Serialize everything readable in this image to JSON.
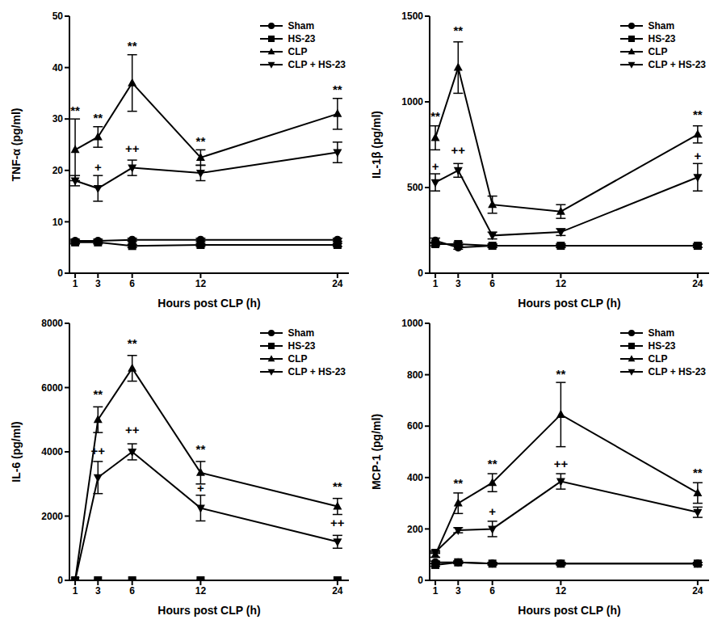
{
  "chart_data": [
    {
      "type": "line",
      "y_label": "TNF-α  (pg/ml)",
      "x_label": "Hours post CLP (h)",
      "x": [
        1,
        3,
        6,
        12,
        24
      ],
      "xlim": [
        0.5,
        25
      ],
      "xticks": [
        1,
        3,
        6,
        12,
        24
      ],
      "ylim": [
        0,
        50
      ],
      "yticks": [
        0,
        10,
        20,
        30,
        40,
        50
      ],
      "legend": "top-right",
      "series": [
        {
          "name": "Sham",
          "color": "#000000",
          "marker": "circle",
          "values": [
            6.3,
            6.3,
            6.5,
            6.5,
            6.5
          ],
          "errors": [
            0.3,
            0.3,
            0.3,
            0.3,
            0.3
          ]
        },
        {
          "name": "HS-23",
          "color": "#000000",
          "marker": "square",
          "values": [
            6.0,
            6.0,
            5.3,
            5.5,
            5.5
          ],
          "errors": [
            0.3,
            0.3,
            0.3,
            0.3,
            0.3
          ]
        },
        {
          "name": "CLP",
          "color": "#000000",
          "marker": "triangle-up",
          "values": [
            24,
            26.5,
            37,
            22.5,
            31
          ],
          "errors": [
            6,
            2,
            5.5,
            1.5,
            3
          ]
        },
        {
          "name": "CLP + HS-23",
          "color": "#000000",
          "marker": "triangle-down",
          "values": [
            18,
            16.5,
            20.5,
            19.5,
            23.5
          ],
          "errors": [
            1,
            2.5,
            1.5,
            1.5,
            2
          ]
        }
      ],
      "annotations": [
        {
          "x": 1,
          "y": 31.5,
          "text": "**"
        },
        {
          "x": 3,
          "y": 30,
          "text": "**"
        },
        {
          "x": 6,
          "y": 44,
          "text": "**"
        },
        {
          "x": 6,
          "y": 24,
          "text": "++"
        },
        {
          "x": 3,
          "y": 20.5,
          "text": "+"
        },
        {
          "x": 12,
          "y": 25.5,
          "text": "**"
        },
        {
          "x": 24,
          "y": 35.5,
          "text": "**"
        }
      ]
    },
    {
      "type": "line",
      "y_label": "IL-1β  (pg/ml)",
      "x_label": "Hours post CLP (h)",
      "x": [
        1,
        3,
        6,
        12,
        24
      ],
      "xlim": [
        0.5,
        25
      ],
      "xticks": [
        1,
        3,
        6,
        12,
        24
      ],
      "ylim": [
        0,
        1500
      ],
      "yticks": [
        0,
        500,
        1000,
        1500
      ],
      "legend": "top-right",
      "series": [
        {
          "name": "Sham",
          "color": "#000000",
          "marker": "circle",
          "values": [
            190,
            150,
            160,
            160,
            160
          ],
          "errors": [
            15,
            10,
            10,
            10,
            10
          ]
        },
        {
          "name": "HS-23",
          "color": "#000000",
          "marker": "square",
          "values": [
            170,
            170,
            160,
            160,
            160
          ],
          "errors": [
            10,
            10,
            10,
            10,
            10
          ]
        },
        {
          "name": "CLP",
          "color": "#000000",
          "marker": "triangle-up",
          "values": [
            790,
            1200,
            400,
            360,
            810
          ],
          "errors": [
            70,
            150,
            50,
            40,
            50
          ]
        },
        {
          "name": "CLP + HS-23",
          "color": "#000000",
          "marker": "triangle-down",
          "values": [
            530,
            600,
            220,
            240,
            560
          ],
          "errors": [
            50,
            40,
            20,
            20,
            80
          ]
        }
      ],
      "annotations": [
        {
          "x": 1,
          "y": 910,
          "text": "**"
        },
        {
          "x": 1,
          "y": 620,
          "text": "+"
        },
        {
          "x": 3,
          "y": 1410,
          "text": "**"
        },
        {
          "x": 3,
          "y": 710,
          "text": "++"
        },
        {
          "x": 24,
          "y": 920,
          "text": "**"
        },
        {
          "x": 24,
          "y": 680,
          "text": "+"
        }
      ]
    },
    {
      "type": "line",
      "y_label": "IL-6  (pg/ml)",
      "x_label": "Hours post CLP (h)",
      "x": [
        1,
        3,
        6,
        12,
        24
      ],
      "xlim": [
        0.5,
        25
      ],
      "xticks": [
        1,
        3,
        6,
        12,
        24
      ],
      "ylim": [
        0,
        8000
      ],
      "yticks": [
        0,
        2000,
        4000,
        6000,
        8000
      ],
      "legend": "top-right",
      "series": [
        {
          "name": "Sham",
          "color": "#000000",
          "marker": "circle",
          "values": [
            0,
            0,
            0,
            0,
            0
          ],
          "errors": [
            0,
            0,
            0,
            0,
            0
          ]
        },
        {
          "name": "HS-23",
          "color": "#000000",
          "marker": "square",
          "values": [
            0,
            0,
            0,
            0,
            0
          ],
          "errors": [
            0,
            0,
            0,
            0,
            0
          ]
        },
        {
          "name": "CLP",
          "color": "#000000",
          "marker": "triangle-up",
          "values": [
            0,
            5000,
            6600,
            3350,
            2300
          ],
          "errors": [
            0,
            400,
            400,
            350,
            250
          ]
        },
        {
          "name": "CLP + HS-23",
          "color": "#000000",
          "marker": "triangle-down",
          "values": [
            0,
            3200,
            4000,
            2250,
            1200
          ],
          "errors": [
            0,
            500,
            250,
            400,
            200
          ]
        }
      ],
      "annotations": [
        {
          "x": 3,
          "y": 5750,
          "text": "**"
        },
        {
          "x": 3,
          "y": 4000,
          "text": "++"
        },
        {
          "x": 6,
          "y": 7350,
          "text": "**"
        },
        {
          "x": 6,
          "y": 4650,
          "text": "++"
        },
        {
          "x": 12,
          "y": 4050,
          "text": "**"
        },
        {
          "x": 12,
          "y": 2850,
          "text": "+"
        },
        {
          "x": 24,
          "y": 2900,
          "text": "**"
        },
        {
          "x": 24,
          "y": 1750,
          "text": "++"
        }
      ]
    },
    {
      "type": "line",
      "y_label": "MCP-1  (pg/ml)",
      "x_label": "Hours post CLP (h)",
      "x": [
        1,
        3,
        6,
        12,
        24
      ],
      "xlim": [
        0.5,
        25
      ],
      "xticks": [
        1,
        3,
        6,
        12,
        24
      ],
      "ylim": [
        0,
        1000
      ],
      "yticks": [
        0,
        200,
        400,
        600,
        800,
        1000
      ],
      "legend": "top-right",
      "series": [
        {
          "name": "Sham",
          "color": "#000000",
          "marker": "circle",
          "values": [
            70,
            70,
            65,
            65,
            65
          ],
          "errors": [
            5,
            5,
            5,
            5,
            5
          ]
        },
        {
          "name": "HS-23",
          "color": "#000000",
          "marker": "square",
          "values": [
            60,
            70,
            65,
            65,
            65
          ],
          "errors": [
            5,
            5,
            5,
            5,
            5
          ]
        },
        {
          "name": "CLP",
          "color": "#000000",
          "marker": "triangle-up",
          "values": [
            100,
            300,
            380,
            645,
            340
          ],
          "errors": [
            10,
            40,
            35,
            125,
            40
          ]
        },
        {
          "name": "CLP + HS-23",
          "color": "#000000",
          "marker": "triangle-down",
          "values": [
            110,
            195,
            200,
            385,
            265
          ],
          "errors": [
            5,
            10,
            30,
            30,
            20
          ]
        }
      ],
      "annotations": [
        {
          "x": 3,
          "y": 375,
          "text": "**"
        },
        {
          "x": 6,
          "y": 450,
          "text": "**"
        },
        {
          "x": 6,
          "y": 265,
          "text": "+"
        },
        {
          "x": 12,
          "y": 800,
          "text": "**"
        },
        {
          "x": 12,
          "y": 450,
          "text": "++"
        },
        {
          "x": 24,
          "y": 415,
          "text": "**"
        }
      ]
    }
  ]
}
